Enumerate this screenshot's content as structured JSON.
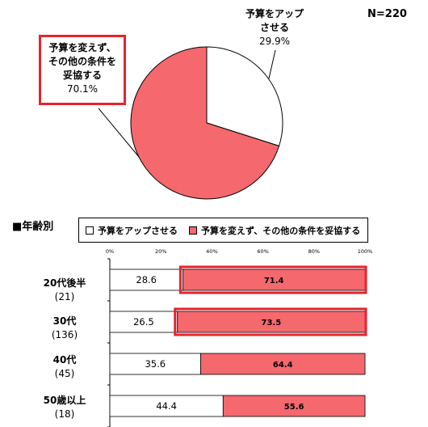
{
  "sample_size": "N=220",
  "section_title": "■年齢別",
  "pie_labels": {
    "raise": {
      "line1": "予算をアップ",
      "line2": "させる",
      "pct": "29.9%"
    },
    "keep": {
      "line1": "予算を変えず、",
      "line2": "その他の条件を",
      "line3": "妥協する",
      "pct": "70.1%"
    }
  },
  "legend": {
    "raise": "予算をアップさせる",
    "keep": "予算を変えず、その他の条件を妥協する"
  },
  "categories": [
    {
      "line1": "20代後半",
      "line2": "(21)"
    },
    {
      "line1": "30代",
      "line2": "(136)"
    },
    {
      "line1": "40代",
      "line2": "(45)"
    },
    {
      "line1": "50歳以上",
      "line2": "(18)"
    }
  ],
  "colors": {
    "raise": "#ffffff",
    "keep": "#f4686e",
    "highlight": "#e8222e"
  },
  "chart_data": [
    {
      "type": "pie",
      "title": "",
      "slices": [
        {
          "label": "予算をアップさせる",
          "value": 29.9
        },
        {
          "label": "予算を変えず、その他の条件を妥協する",
          "value": 70.1
        }
      ]
    },
    {
      "type": "bar",
      "orientation": "horizontal",
      "stacked": true,
      "categories": [
        "20代後半 (21)",
        "30代 (136)",
        "40代 (45)",
        "50歳以上 (18)"
      ],
      "series": [
        {
          "name": "予算をアップさせる",
          "values": [
            28.6,
            26.5,
            35.6,
            44.4
          ]
        },
        {
          "name": "予算を変えず、その他の条件を妥協する",
          "values": [
            71.4,
            73.5,
            64.4,
            55.6
          ]
        }
      ],
      "xlim": [
        0,
        100
      ],
      "tick_labels": [
        "0%",
        "20%",
        "40%",
        "60%",
        "80%",
        "100%"
      ],
      "highlighted_categories": [
        "20代後半 (21)",
        "30代 (136)"
      ]
    }
  ]
}
